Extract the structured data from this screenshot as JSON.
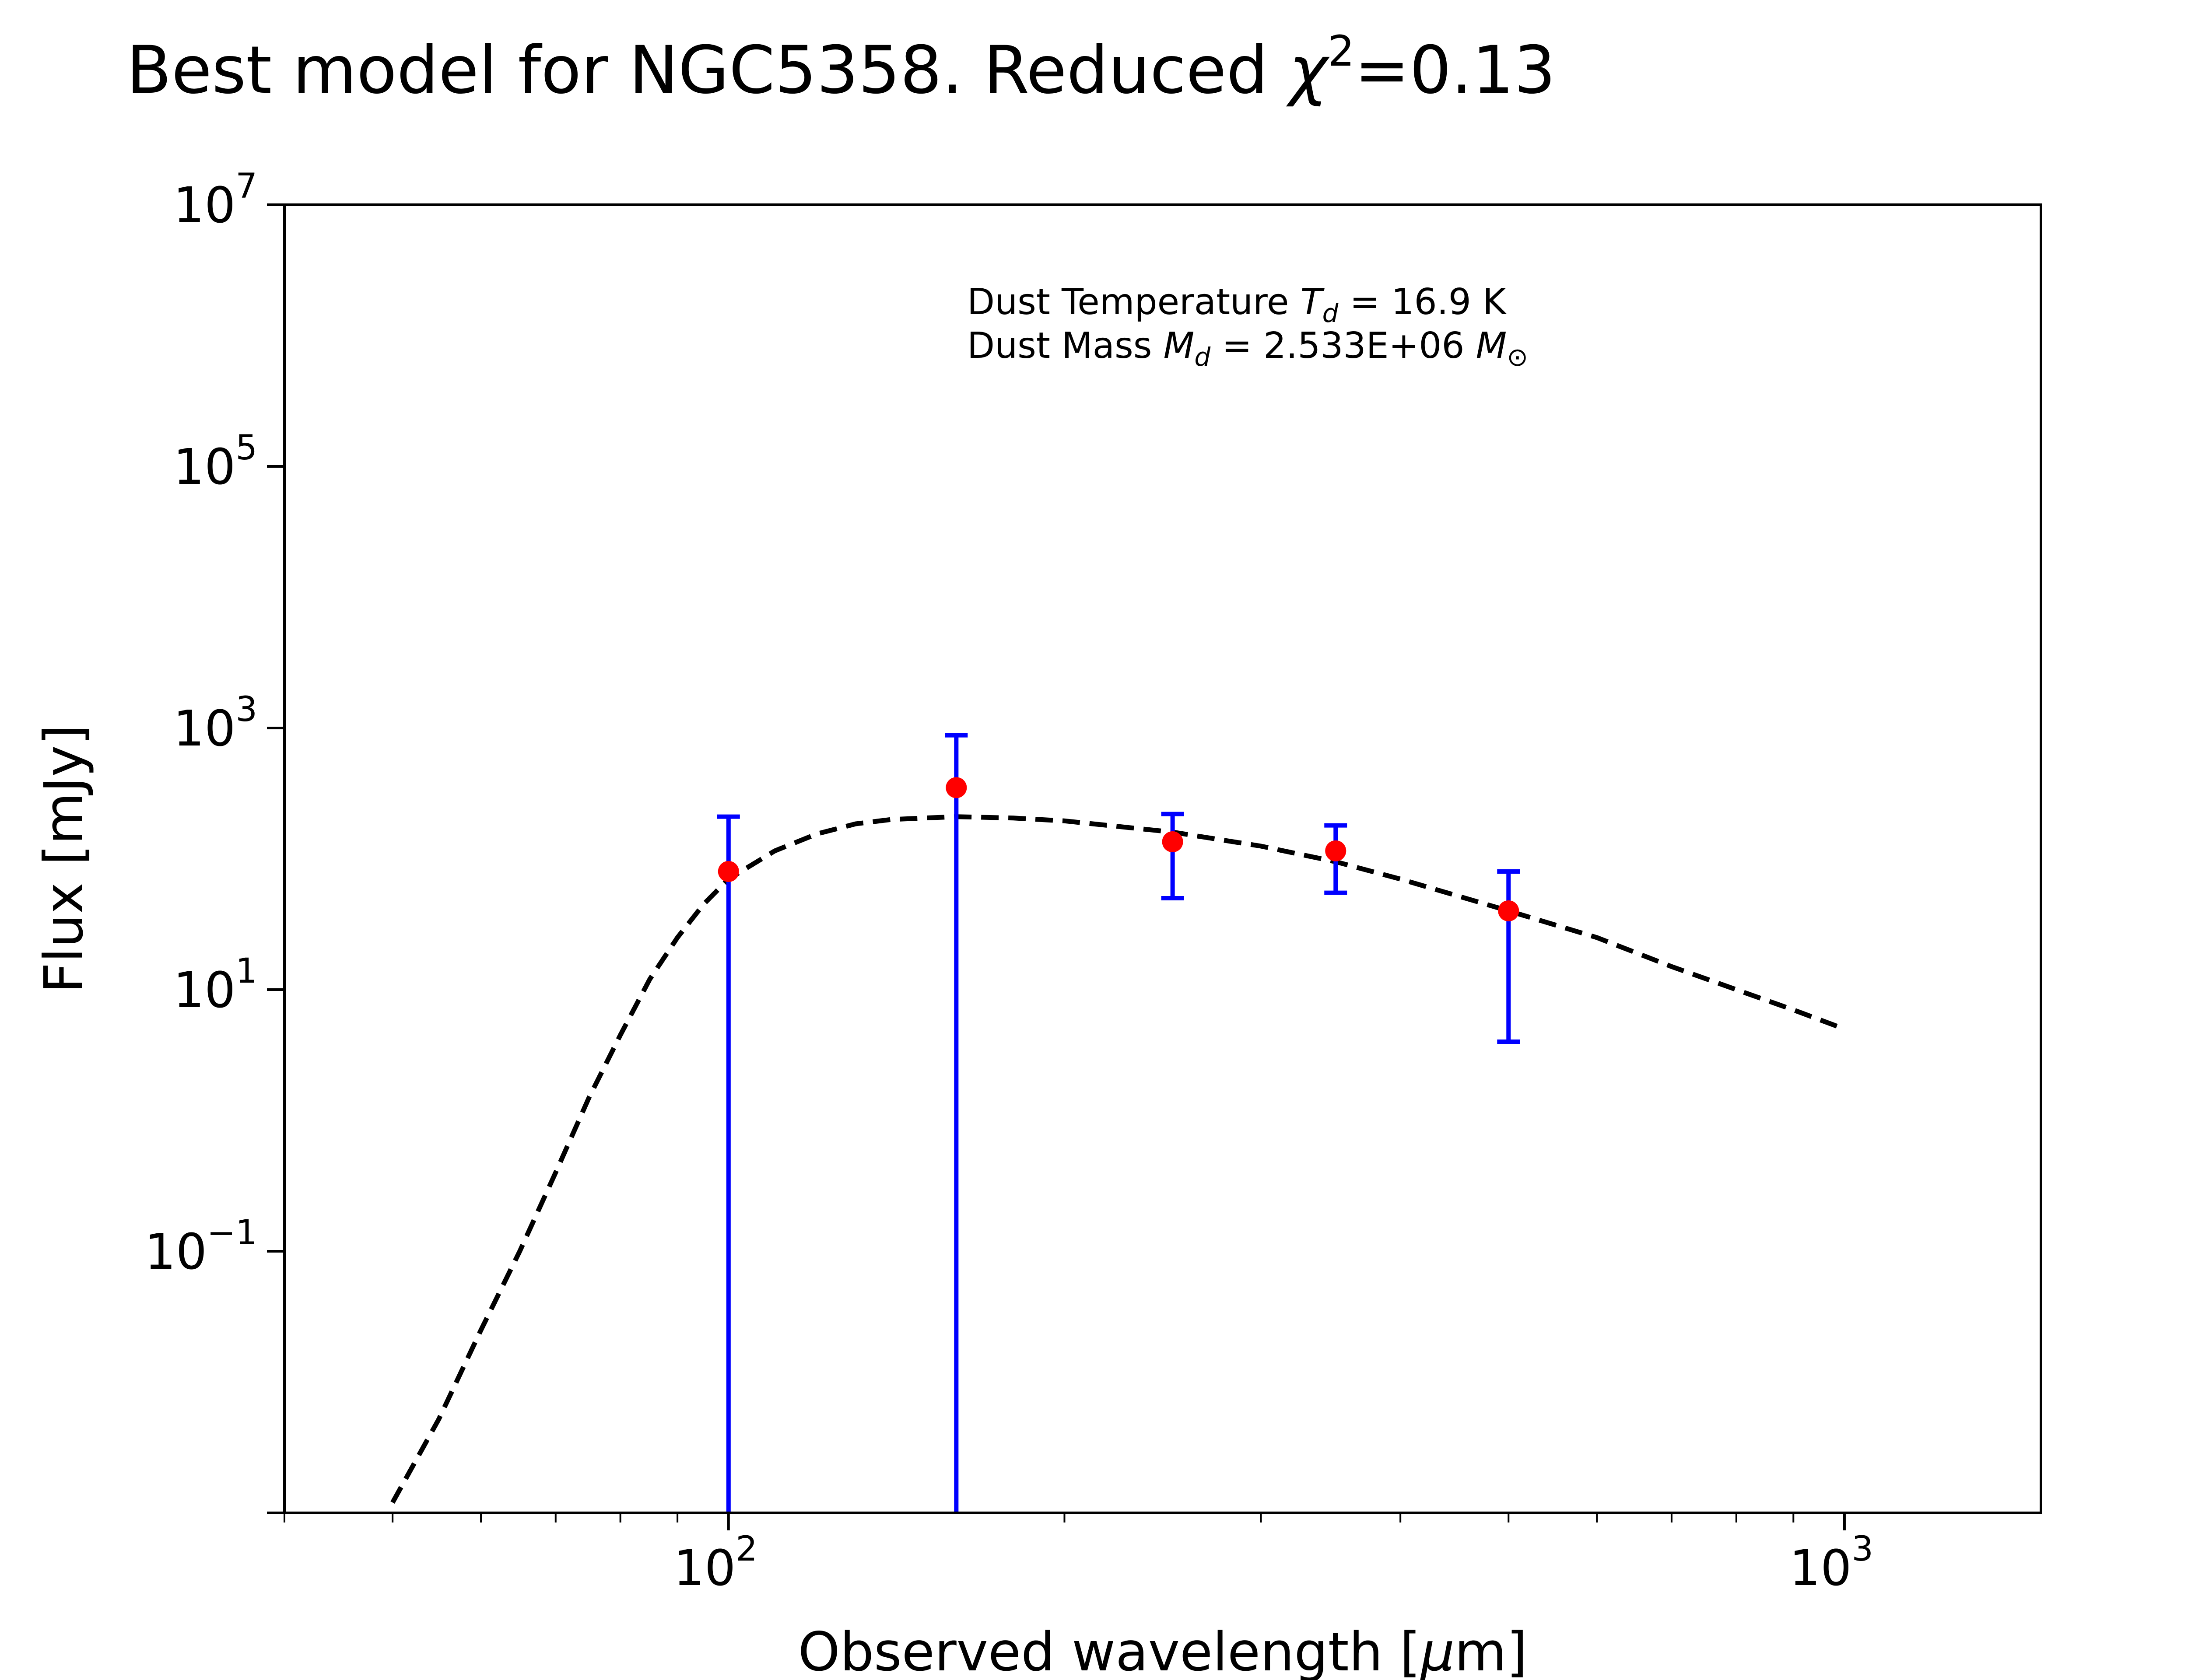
{
  "chart_data": {
    "type": "scatter",
    "title": "Best model for NGC5358. Reduced χ²=0.13",
    "title_parts": {
      "main": "Best model for NGC5358. Reduced ",
      "chi": "χ",
      "sup": "2",
      "value": "=0.13"
    },
    "xlabel": "Observed wavelength [μm]",
    "xlabel_parts": {
      "pre": "Observed wavelength [",
      "mu": "μ",
      "post": "m]"
    },
    "ylabel": "Flux [mJy]",
    "x_scale": "log",
    "y_scale": "log",
    "xlim": [
      40,
      1500
    ],
    "ylim": [
      0.001,
      10000000
    ],
    "x_ticks": [
      {
        "value": 100,
        "base": "10",
        "exp": "2"
      },
      {
        "value": 1000,
        "base": "10",
        "exp": "3"
      }
    ],
    "y_ticks": [
      {
        "value": 0.1,
        "base": "10",
        "exp": "−1"
      },
      {
        "value": 10,
        "base": "10",
        "exp": "1"
      },
      {
        "value": 1000,
        "base": "10",
        "exp": "3"
      },
      {
        "value": 100000,
        "base": "10",
        "exp": "5"
      },
      {
        "value": 10000000,
        "base": "10",
        "exp": "7"
      }
    ],
    "grid": false,
    "annotations": [
      {
        "prefix": "Dust Temperature ",
        "sym": "T",
        "sub": "d",
        "suffix": " = 16.9 K"
      },
      {
        "prefix": "Dust Mass ",
        "sym": "M",
        "sub": "d",
        "suffix": " = 2.533E+06 ",
        "unit_sym": "M",
        "unit_sub": "⊙"
      }
    ],
    "observations": {
      "name": "",
      "marker_color": "#ff0000",
      "errorbar_color": "#0000ff",
      "points": [
        {
          "x": 100,
          "y": 80,
          "ylow": 0.001,
          "yhigh": 210
        },
        {
          "x": 160,
          "y": 350,
          "ylow": 0.001,
          "yhigh": 880
        },
        {
          "x": 250,
          "y": 135,
          "ylow": 50,
          "yhigh": 220
        },
        {
          "x": 350,
          "y": 115,
          "ylow": 55,
          "yhigh": 180
        },
        {
          "x": 500,
          "y": 40,
          "ylow": 4,
          "yhigh": 80
        }
      ]
    },
    "model": {
      "name": "",
      "style": "dashed",
      "color": "#000000",
      "points": [
        {
          "x": 50,
          "y": 0.0012
        },
        {
          "x": 55,
          "y": 0.0052
        },
        {
          "x": 60,
          "y": 0.025
        },
        {
          "x": 65,
          "y": 0.1
        },
        {
          "x": 70,
          "y": 0.4
        },
        {
          "x": 75,
          "y": 1.5
        },
        {
          "x": 80,
          "y": 4.5
        },
        {
          "x": 85,
          "y": 12
        },
        {
          "x": 90,
          "y": 25
        },
        {
          "x": 95,
          "y": 45
        },
        {
          "x": 100,
          "y": 70
        },
        {
          "x": 110,
          "y": 115
        },
        {
          "x": 120,
          "y": 155
        },
        {
          "x": 130,
          "y": 185
        },
        {
          "x": 140,
          "y": 200
        },
        {
          "x": 160,
          "y": 210
        },
        {
          "x": 180,
          "y": 205
        },
        {
          "x": 200,
          "y": 195
        },
        {
          "x": 250,
          "y": 160
        },
        {
          "x": 300,
          "y": 125
        },
        {
          "x": 350,
          "y": 95
        },
        {
          "x": 400,
          "y": 70
        },
        {
          "x": 500,
          "y": 40
        },
        {
          "x": 600,
          "y": 25
        },
        {
          "x": 700,
          "y": 15
        },
        {
          "x": 800,
          "y": 10
        },
        {
          "x": 900,
          "y": 7
        },
        {
          "x": 1000,
          "y": 5
        }
      ]
    }
  }
}
